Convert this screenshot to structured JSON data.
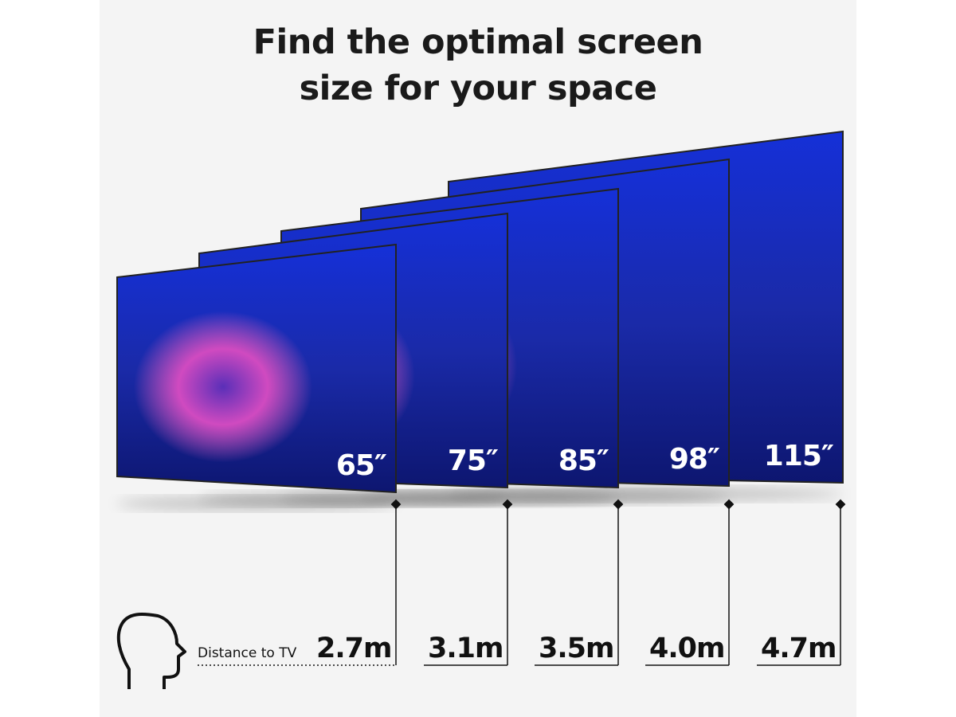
{
  "title": {
    "line1": "Find the optimal screen",
    "line2": "size for your space"
  },
  "distance_caption": "Distance to TV",
  "tvs": [
    {
      "size": "65″",
      "distance": "2.7m"
    },
    {
      "size": "75″",
      "distance": "3.1m"
    },
    {
      "size": "85″",
      "distance": "3.5m"
    },
    {
      "size": "98″",
      "distance": "4.0m"
    },
    {
      "size": "115″",
      "distance": "4.7m"
    }
  ],
  "icons": {
    "viewer": "head-profile-icon"
  },
  "colors": {
    "screen_blue": "#1a2fd0",
    "coral_pink": "#e14bb8",
    "text": "#111111",
    "background": "#f4f4f4"
  }
}
